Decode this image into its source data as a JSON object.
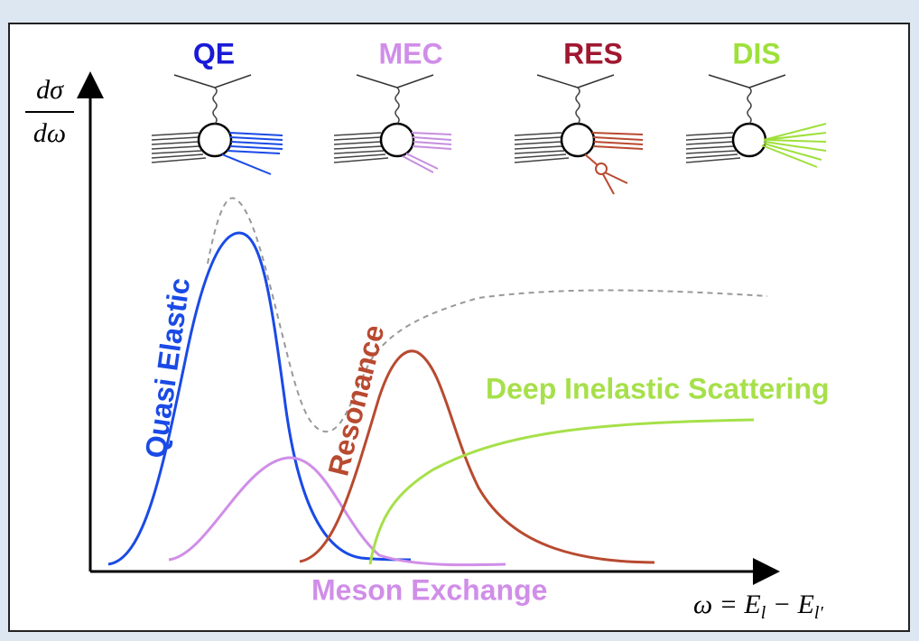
{
  "header": {
    "labels": [
      "QE",
      "MEC",
      "RES",
      "DIS"
    ]
  },
  "y_axis_label": {
    "numerator": "dσ",
    "denominator": "dω"
  },
  "x_axis_label": [
    "ω = E",
    "l",
    " − E",
    "l′"
  ],
  "curve_labels": {
    "quasi_elastic": "Quasi Elastic",
    "meson_exchange": "Meson Exchange",
    "resonance": "Resonance",
    "deep_inelastic": "Deep Inelastic Scattering"
  }
}
